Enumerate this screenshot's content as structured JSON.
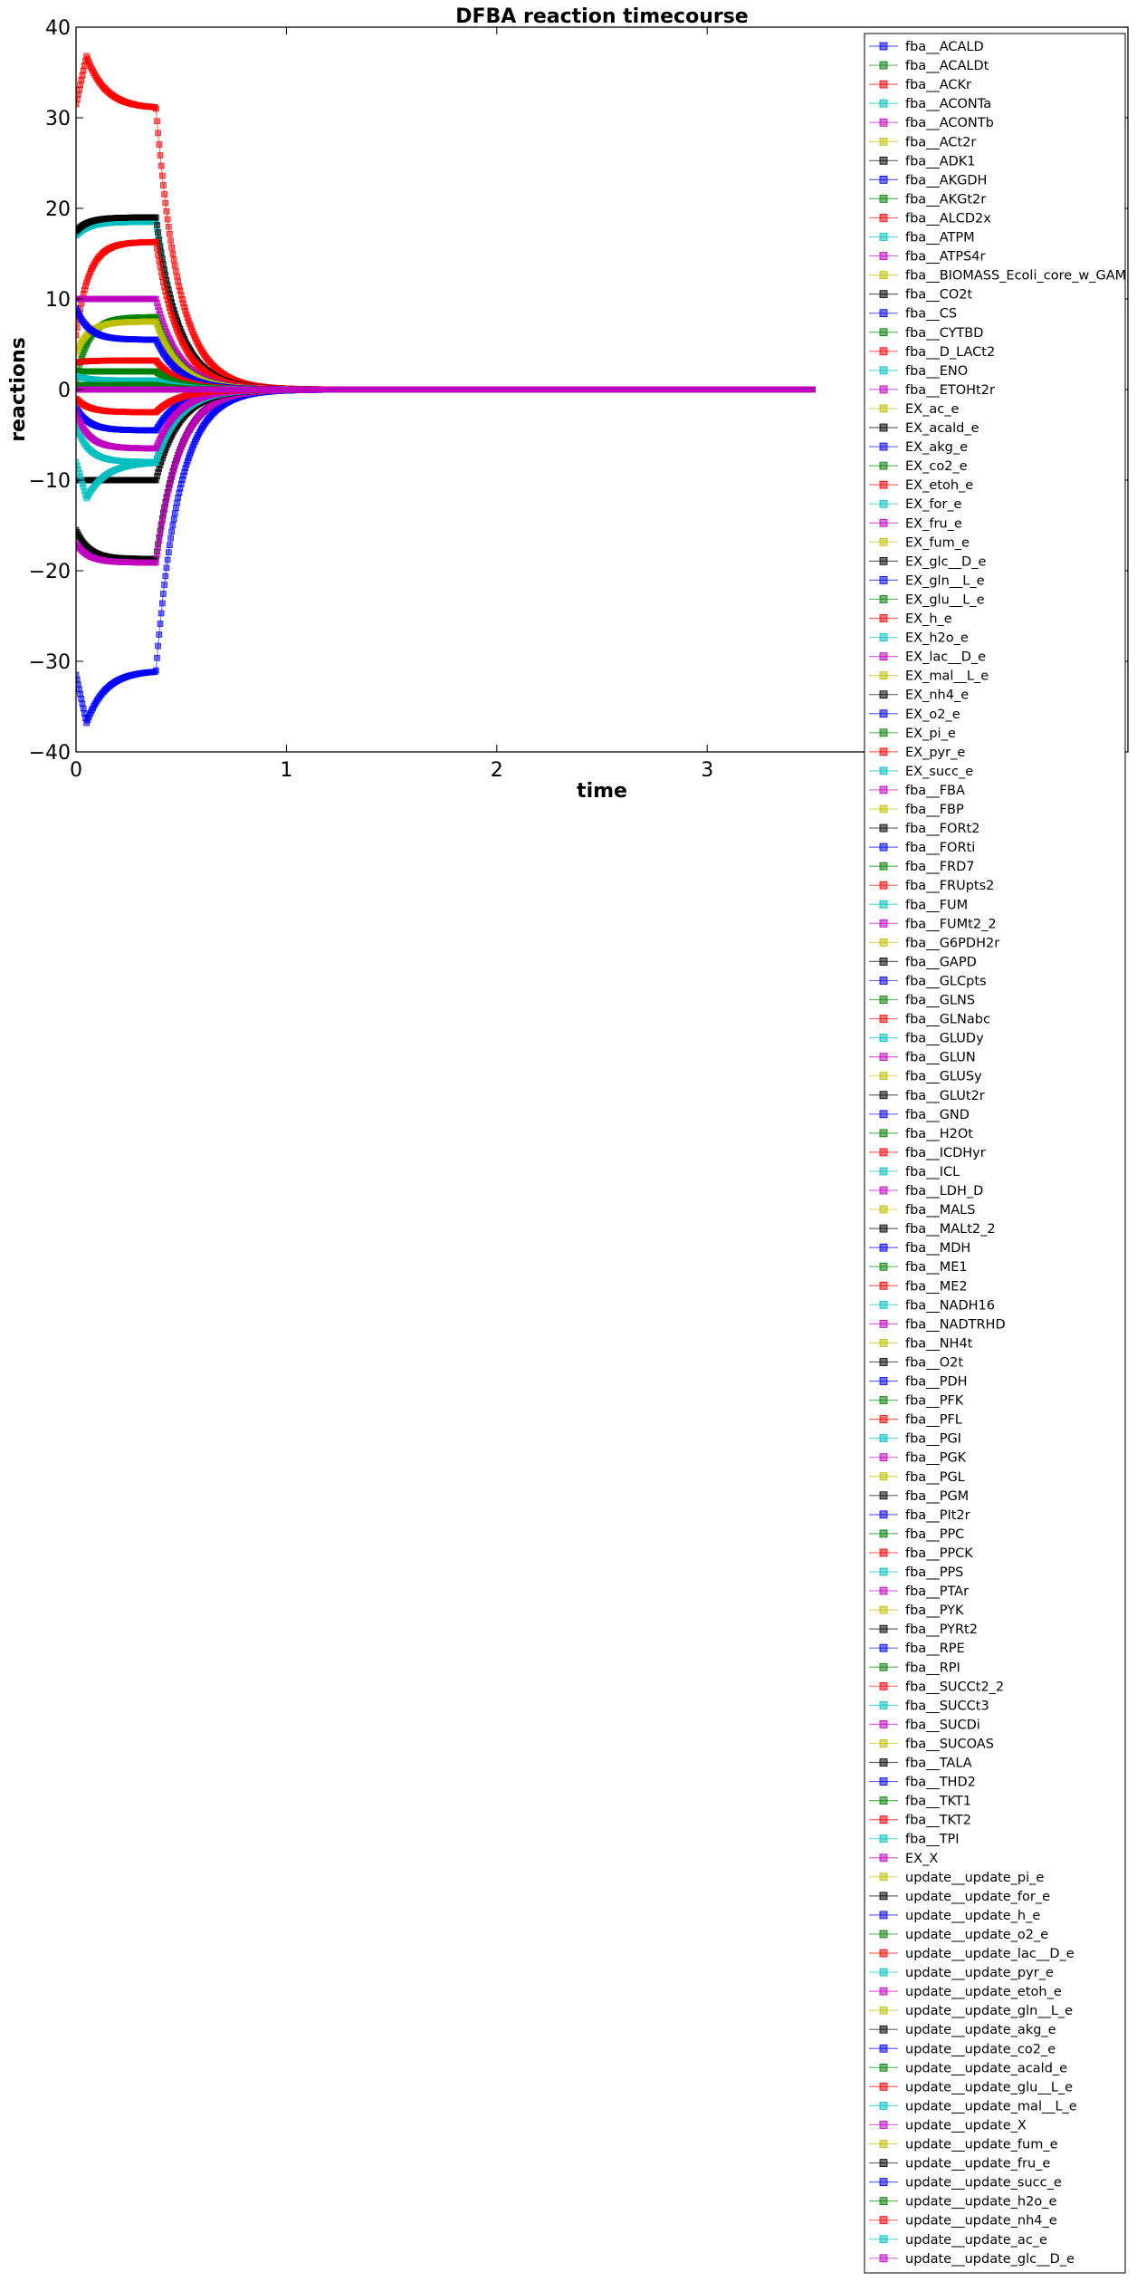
{
  "chart_data": {
    "type": "line",
    "title": "DFBA reaction timecourse",
    "xlabel": "time",
    "ylabel": "reactions",
    "xlim": [
      0,
      5.0
    ],
    "ylim": [
      -40,
      40
    ],
    "xticks": [
      "0",
      "1",
      "2",
      "3"
    ],
    "yticks": [
      "40",
      "30",
      "20",
      "10",
      "0",
      "−10",
      "−20",
      "−30",
      "−40"
    ],
    "grid": false,
    "legend_position": "right",
    "marker": "square",
    "color_cycle": [
      "#0000ff",
      "#008000",
      "#ff0000",
      "#00bfbf",
      "#bf00bf",
      "#bfbf00",
      "#000000"
    ],
    "legend": [
      "fba__ACALD",
      "fba__ACALDt",
      "fba__ACKr",
      "fba__ACONTa",
      "fba__ACONTb",
      "fba__ACt2r",
      "fba__ADK1",
      "fba__AKGDH",
      "fba__AKGt2r",
      "fba__ALCD2x",
      "fba__ATPM",
      "fba__ATPS4r",
      "fba__BIOMASS_Ecoli_core_w_GAM",
      "fba__CO2t",
      "fba__CS",
      "fba__CYTBD",
      "fba__D_LACt2",
      "fba__ENO",
      "fba__ETOHt2r",
      "EX_ac_e",
      "EX_acald_e",
      "EX_akg_e",
      "EX_co2_e",
      "EX_etoh_e",
      "EX_for_e",
      "EX_fru_e",
      "EX_fum_e",
      "EX_glc__D_e",
      "EX_gln__L_e",
      "EX_glu__L_e",
      "EX_h_e",
      "EX_h2o_e",
      "EX_lac__D_e",
      "EX_mal__L_e",
      "EX_nh4_e",
      "EX_o2_e",
      "EX_pi_e",
      "EX_pyr_e",
      "EX_succ_e",
      "fba__FBA",
      "fba__FBP",
      "fba__FORt2",
      "fba__FORti",
      "fba__FRD7",
      "fba__FRUpts2",
      "fba__FUM",
      "fba__FUMt2_2",
      "fba__G6PDH2r",
      "fba__GAPD",
      "fba__GLCpts",
      "fba__GLNS",
      "fba__GLNabc",
      "fba__GLUDy",
      "fba__GLUN",
      "fba__GLUSy",
      "fba__GLUt2r",
      "fba__GND",
      "fba__H2Ot",
      "fba__ICDHyr",
      "fba__ICL",
      "fba__LDH_D",
      "fba__MALS",
      "fba__MALt2_2",
      "fba__MDH",
      "fba__ME1",
      "fba__ME2",
      "fba__NADH16",
      "fba__NADTRHD",
      "fba__NH4t",
      "fba__O2t",
      "fba__PDH",
      "fba__PFK",
      "fba__PFL",
      "fba__PGI",
      "fba__PGK",
      "fba__PGL",
      "fba__PGM",
      "fba__PIt2r",
      "fba__PPC",
      "fba__PPCK",
      "fba__PPS",
      "fba__PTAr",
      "fba__PYK",
      "fba__PYRt2",
      "fba__RPE",
      "fba__RPI",
      "fba__SUCCt2_2",
      "fba__SUCCt3",
      "fba__SUCDi",
      "fba__SUCOAS",
      "fba__TALA",
      "fba__THD2",
      "fba__TKT1",
      "fba__TKT2",
      "fba__TPI",
      "EX_X",
      "update__update_pi_e",
      "update__update_for_e",
      "update__update_h_e",
      "update__update_o2_e",
      "update__update_lac__D_e",
      "update__update_pyr_e",
      "update__update_etoh_e",
      "update__update_gln__L_e",
      "update__update_akg_e",
      "update__update_co2_e",
      "update__update_acald_e",
      "update__update_glu__L_e",
      "update__update_mal__L_e",
      "update__update_X",
      "update__update_fum_e",
      "update__update_fru_e",
      "update__update_succ_e",
      "update__update_h2o_e",
      "update__update_nh4_e",
      "update__update_ac_e",
      "update__update_glc__D_e"
    ],
    "time_grid": {
      "start": 0,
      "end": 3.5,
      "step": 0.005
    },
    "trajectories": [
      {
        "shape": "peak",
        "color": "#ff0000",
        "initial": 31.5,
        "peak": 36.8,
        "plateau": 31.0,
        "final": 0
      },
      {
        "shape": "peak",
        "color": "#0000ff",
        "initial": -31.5,
        "peak": -36.8,
        "plateau": -31.0,
        "final": 0
      },
      {
        "shape": "rise",
        "color": "#00bfbf",
        "initial": 17.0,
        "plateau": 18.5,
        "final": 0
      },
      {
        "shape": "rise",
        "color": "#000000",
        "initial": 17.5,
        "plateau": 19.0,
        "final": 0
      },
      {
        "shape": "rise",
        "color": "#ff0000",
        "initial": 6.0,
        "plateau": 16.3,
        "final": 0
      },
      {
        "shape": "rise",
        "color": "#000000",
        "initial": -15.5,
        "plateau": -18.7,
        "final": 0
      },
      {
        "shape": "rise",
        "color": "#bf00bf",
        "initial": -17.0,
        "plateau": -19.1,
        "final": 0
      },
      {
        "shape": "flat",
        "color": "#bf00bf",
        "initial": 10.0,
        "plateau": 10.0,
        "final": 0
      },
      {
        "shape": "flat",
        "color": "#000000",
        "initial": -10.0,
        "plateau": -10.0,
        "final": 0
      },
      {
        "shape": "rise",
        "color": "#00bfbf",
        "initial": -4.0,
        "plateau": -8.0,
        "final": 0
      },
      {
        "shape": "dip",
        "color": "#00bfbf",
        "initial": -8.0,
        "peak": -12.0,
        "plateau": -8.0,
        "final": 0
      },
      {
        "shape": "rise",
        "color": "#008000",
        "initial": 1.0,
        "plateau": 8.0,
        "final": 0
      },
      {
        "shape": "rise",
        "color": "#bfbf00",
        "initial": 4.0,
        "plateau": 7.5,
        "final": 0
      },
      {
        "shape": "rise",
        "color": "#0000ff",
        "initial": 9.0,
        "plateau": 5.5,
        "final": 0
      },
      {
        "shape": "rise",
        "color": "#ff0000",
        "initial": 3.0,
        "plateau": 3.2,
        "final": 0
      },
      {
        "shape": "rise",
        "color": "#0000ff",
        "initial": -2.0,
        "plateau": -4.5,
        "final": 0
      },
      {
        "shape": "rise",
        "color": "#bf00bf",
        "initial": -2.5,
        "plateau": -6.5,
        "final": 0
      },
      {
        "shape": "rise",
        "color": "#008000",
        "initial": 2.0,
        "plateau": 2.0,
        "final": 0
      },
      {
        "shape": "rise",
        "color": "#ff0000",
        "initial": -1.0,
        "plateau": -2.5,
        "final": 0
      },
      {
        "shape": "rise",
        "color": "#00bfbf",
        "initial": 1.5,
        "plateau": 1.0,
        "final": 0
      },
      {
        "shape": "flat",
        "color": "#008000",
        "initial": 0.5,
        "plateau": 0.5,
        "final": 0
      },
      {
        "shape": "flat",
        "color": "#bf00bf",
        "initial": 0,
        "plateau": 0,
        "final": 0
      }
    ]
  }
}
